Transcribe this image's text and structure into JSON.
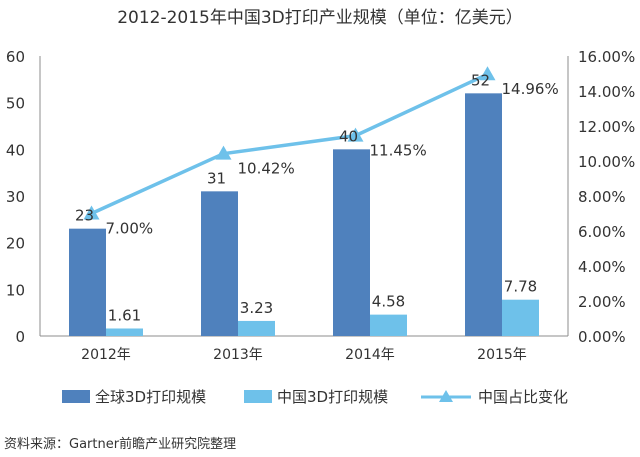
{
  "chart_data": {
    "type": "bar",
    "title": "2012-2015年中国3D打印产业规模（单位：亿美元）",
    "categories": [
      "2012年",
      "2013年",
      "2014年",
      "2015年"
    ],
    "series": [
      {
        "name": "全球3D打印规模",
        "type": "bar",
        "axis": "left",
        "color": "#4f81bd",
        "values": [
          23,
          31,
          40,
          52
        ],
        "labels": [
          "23",
          "31",
          "40",
          "52"
        ]
      },
      {
        "name": "中国3D打印规模",
        "type": "bar",
        "axis": "left",
        "color": "#6ec1ea",
        "values": [
          1.61,
          3.23,
          4.58,
          7.78
        ],
        "labels": [
          "1.61",
          "3.23",
          "4.58",
          "7.78"
        ]
      },
      {
        "name": "中国占比变化",
        "type": "line",
        "axis": "right",
        "color": "#6ec1ea",
        "marker": "triangle",
        "values": [
          7.0,
          10.42,
          11.45,
          14.96
        ],
        "labels": [
          "7.00%",
          "10.42%",
          "11.45%",
          "14.96%"
        ]
      }
    ],
    "y_left": {
      "ylim": [
        0,
        60
      ],
      "ticks": [
        0,
        10,
        20,
        30,
        40,
        50,
        60
      ],
      "tick_labels": [
        "0",
        "10",
        "20",
        "30",
        "40",
        "50",
        "60"
      ]
    },
    "y_right": {
      "ylim": [
        0,
        16
      ],
      "ticks": [
        0,
        2,
        4,
        6,
        8,
        10,
        12,
        14,
        16
      ],
      "tick_labels": [
        "0.00%",
        "2.00%",
        "4.00%",
        "6.00%",
        "8.00%",
        "10.00%",
        "12.00%",
        "14.00%",
        "16.00%"
      ]
    },
    "grid": false,
    "legend_position": "bottom",
    "source": "资料来源：Gartner前瞻产业研究院整理"
  }
}
